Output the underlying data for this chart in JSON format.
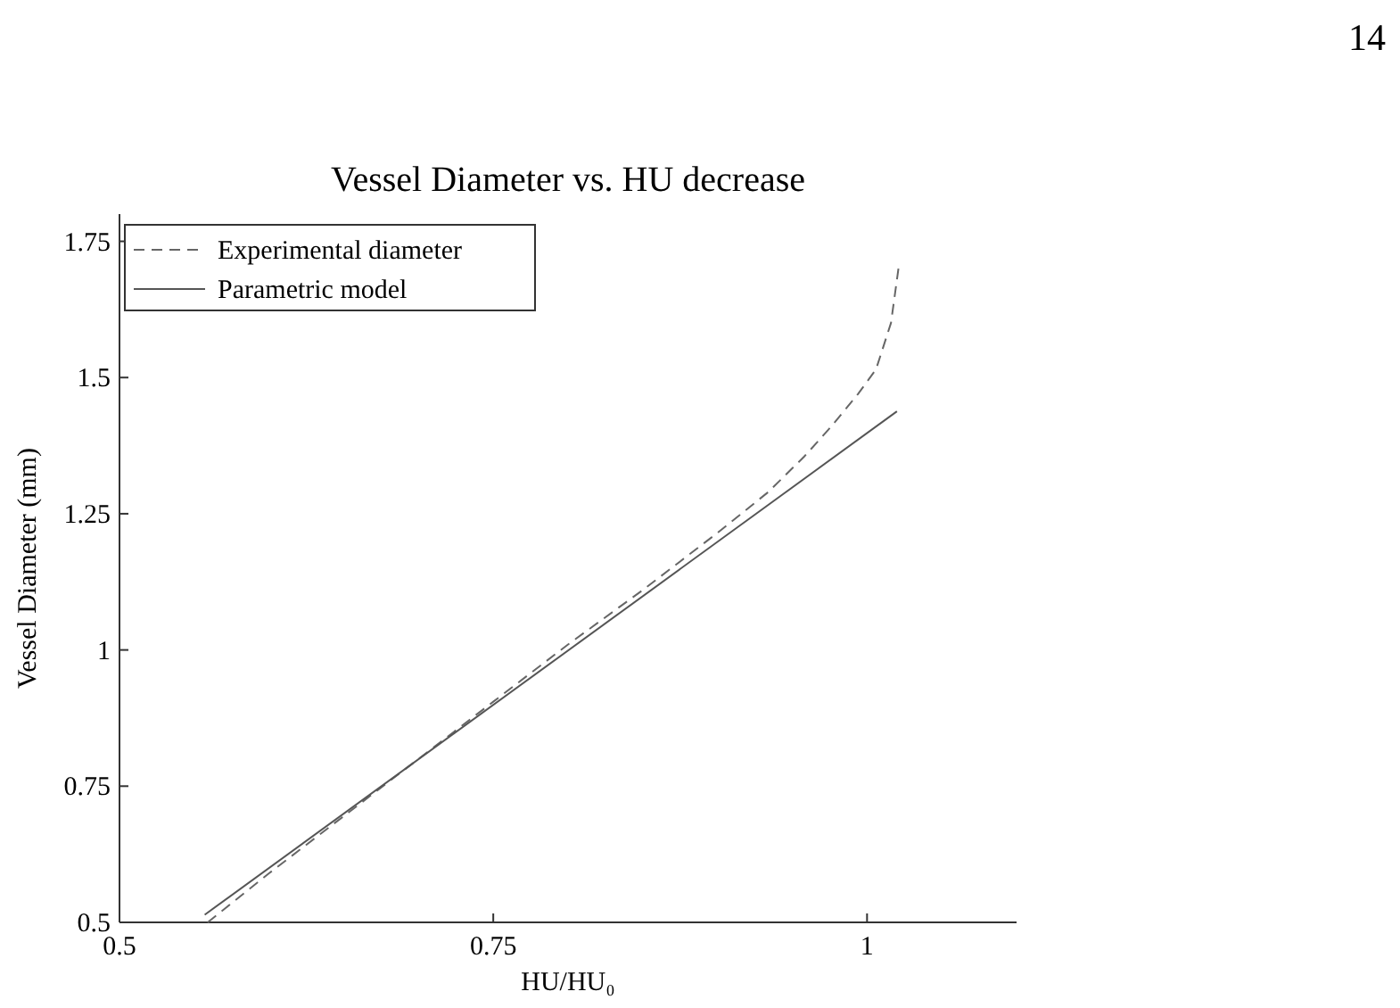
{
  "chart_data": {
    "type": "line",
    "title": "Vessel Diameter vs. HU decrease",
    "xlabel": "HU/HU₀",
    "ylabel": "Vessel Diameter (mm)",
    "annotations": [
      "14"
    ],
    "xlim": [
      0.5,
      1.1
    ],
    "xticks": [
      0.5,
      0.75,
      1
    ],
    "ylim": [
      0.5,
      1.8
    ],
    "yticks": [
      0.5,
      0.75,
      1,
      1.25,
      1.5,
      1.75
    ],
    "legend": "top left",
    "grid": false,
    "series": [
      {
        "name": "Experimental diameter",
        "color": "#666666",
        "line_style": "dashed",
        "x": [
          0.559,
          0.6,
          0.65,
          0.7,
          0.75,
          0.8,
          0.85,
          0.9,
          0.934,
          0.958,
          0.976,
          0.994,
          1.006,
          1.016,
          1.021
        ],
        "values": [
          0.5,
          0.59,
          0.695,
          0.8,
          0.905,
          1.01,
          1.11,
          1.215,
          1.29,
          1.355,
          1.41,
          1.47,
          1.515,
          1.6,
          1.7
        ]
      },
      {
        "name": "Parametric model",
        "color": "#555555",
        "line_style": "solid",
        "x": [
          0.557,
          1.02
        ],
        "values": [
          0.514,
          1.438
        ]
      }
    ]
  }
}
